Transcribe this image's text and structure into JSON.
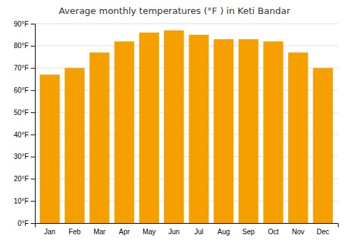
{
  "chart_data": {
    "type": "bar",
    "title": "Average monthly temperatures (°F ) in Keti Bandar",
    "categories": [
      "Jan",
      "Feb",
      "Mar",
      "Apr",
      "May",
      "Jun",
      "Jul",
      "Aug",
      "Sep",
      "Oct",
      "Nov",
      "Dec"
    ],
    "values": [
      67,
      70,
      77,
      82,
      86,
      87,
      85,
      83,
      83,
      82,
      77,
      70
    ],
    "color": "#F5A000",
    "ylim": [
      0,
      90
    ],
    "yticks": [
      {
        "value": 0,
        "label": "0°F"
      },
      {
        "value": 10,
        "label": "10°F"
      },
      {
        "value": 20,
        "label": "20°F"
      },
      {
        "value": 30,
        "label": "30°F"
      },
      {
        "value": 40,
        "label": "40°F"
      },
      {
        "value": 50,
        "label": "50°F"
      },
      {
        "value": 60,
        "label": "60°F"
      },
      {
        "value": 70,
        "label": "70°F"
      },
      {
        "value": 80,
        "label": "80°F"
      },
      {
        "value": 90,
        "label": "90°F"
      }
    ],
    "grid": true
  }
}
